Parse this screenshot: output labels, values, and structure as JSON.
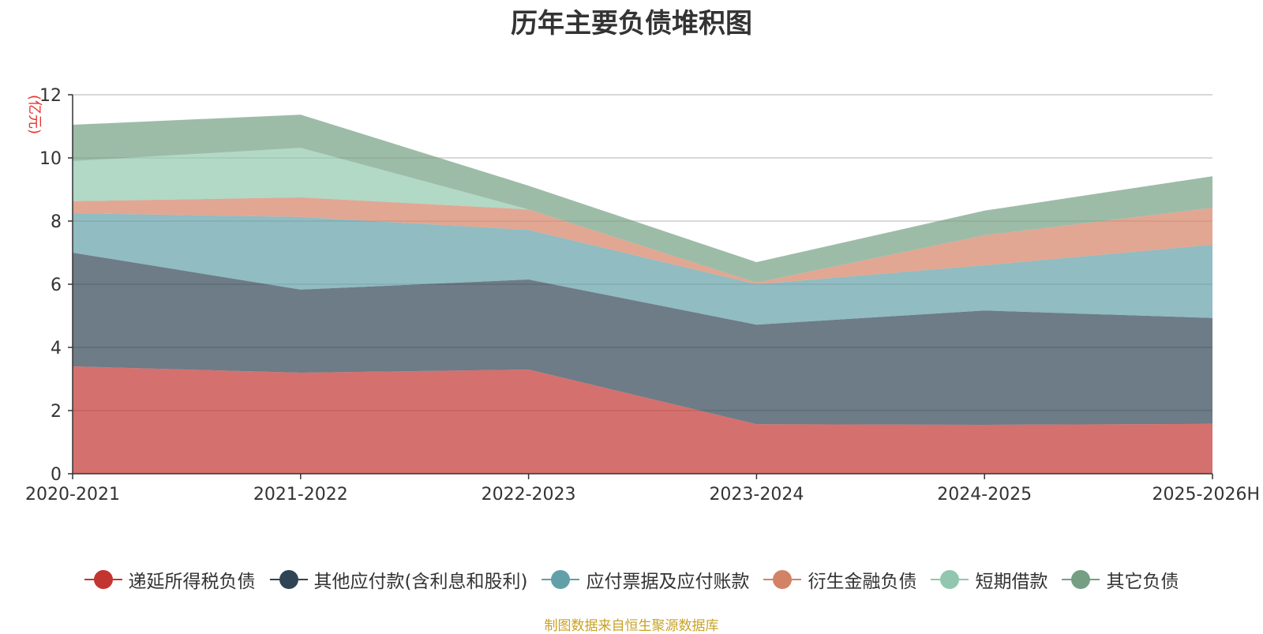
{
  "chart_data": {
    "type": "area",
    "stacked": true,
    "title": "历年主要负债堆积图",
    "ylabel": "(亿元)",
    "xlabel": "",
    "ylim": [
      0,
      12
    ],
    "yticks": [
      0,
      2,
      4,
      6,
      8,
      10,
      12
    ],
    "grid": true,
    "categories": [
      "2020-2021",
      "2021-2022",
      "2022-2023",
      "2023-2024",
      "2024-2025",
      "2025-2026H"
    ],
    "series": [
      {
        "name": "递延所得税负债",
        "color": "#c23531",
        "values": [
          3.4,
          3.2,
          3.3,
          1.57,
          1.55,
          1.58
        ]
      },
      {
        "name": "其他应付款(含利息和股利)",
        "color": "#2f4554",
        "values": [
          3.6,
          2.63,
          2.85,
          3.15,
          3.62,
          3.35
        ]
      },
      {
        "name": "应付票据及应付账款",
        "color": "#61a0a8",
        "values": [
          1.25,
          2.3,
          1.57,
          1.28,
          1.43,
          2.32
        ]
      },
      {
        "name": "衍生金融负债",
        "color": "#d48265",
        "values": [
          0.38,
          0.62,
          0.65,
          0.05,
          0.95,
          1.17
        ]
      },
      {
        "name": "短期借款",
        "color": "#91c7ae",
        "values": [
          1.27,
          1.57,
          0.0,
          0.0,
          0.0,
          0.0
        ]
      },
      {
        "name": "其它负债",
        "color": "#749f83",
        "values": [
          1.15,
          1.05,
          0.75,
          0.65,
          0.78,
          1.0
        ]
      }
    ],
    "source": "制图数据来自恒生聚源数据库"
  }
}
